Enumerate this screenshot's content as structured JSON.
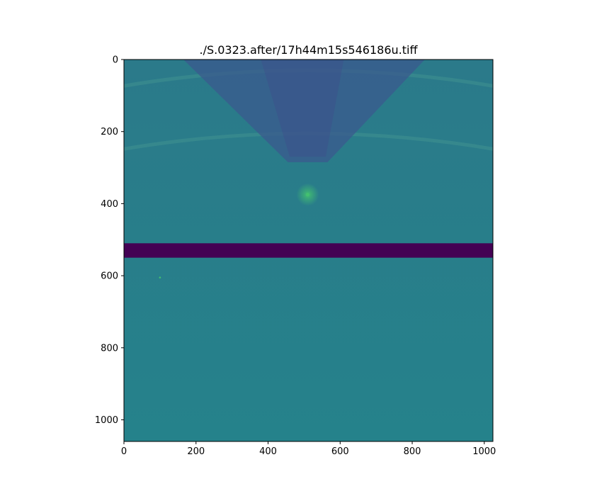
{
  "chart_data": {
    "type": "heatmap",
    "title": "./S.0323.after/17h44m15s546186u.tiff",
    "xlabel": "",
    "ylabel": "",
    "xlim": [
      0,
      1024
    ],
    "ylim": [
      1060,
      0
    ],
    "x_ticks": [
      0,
      200,
      400,
      600,
      800,
      1000
    ],
    "y_ticks": [
      0,
      200,
      400,
      600,
      800,
      1000
    ],
    "colormap": "viridis",
    "background_color": "#2b7a8a",
    "lower_region_color": "#25828b",
    "shadow_color": "#3b5a8e",
    "shadow_core_color": "#3d4f8c",
    "ring_color": "#3f9190",
    "spot_color": "#43c070",
    "band_color": "#440154",
    "features": {
      "masked_band": {
        "y_range": [
          510,
          550
        ],
        "x_range": [
          0,
          1024
        ]
      },
      "beam_spot": {
        "x": 510,
        "y": 375
      },
      "hot_pixel": {
        "x": 100,
        "y": 605
      },
      "shadow_cone": {
        "top_x_range": [
          165,
          835
        ],
        "bottom_x_range": [
          455,
          565
        ],
        "y_range": [
          0,
          285
        ]
      },
      "rings": [
        {
          "y_at_center": 205
        },
        {
          "y_at_center": 30
        }
      ]
    }
  }
}
